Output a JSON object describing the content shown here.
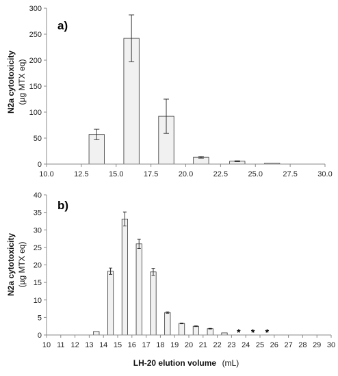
{
  "chart_data": [
    {
      "type": "bar",
      "panel_label": "a)",
      "ylabel_main": "N2a cytotoxicity",
      "ylabel_unit": "(µg MTX eq)",
      "xlim": [
        10.0,
        30.0
      ],
      "xticks": [
        "10.0",
        "12.5",
        "15.0",
        "17.5",
        "20.0",
        "22.5",
        "25.0",
        "27.5",
        "30.0"
      ],
      "xtick_values": [
        10.0,
        12.5,
        15.0,
        17.5,
        20.0,
        22.5,
        25.0,
        27.5,
        30.0
      ],
      "ylim": [
        0,
        300
      ],
      "yticks": [
        "0",
        "50",
        "100",
        "150",
        "200",
        "250",
        "300"
      ],
      "ytick_values": [
        0,
        50,
        100,
        150,
        200,
        250,
        300
      ],
      "bar_width": 1.1,
      "bars": [
        {
          "x": 13.6,
          "value": 57,
          "err": 10
        },
        {
          "x": 16.1,
          "value": 242,
          "err": 45
        },
        {
          "x": 18.6,
          "value": 92,
          "err": 33
        },
        {
          "x": 21.1,
          "value": 13,
          "err": 1.5
        },
        {
          "x": 23.7,
          "value": 5.5,
          "err": 0.8
        },
        {
          "x": 26.2,
          "value": 1.5,
          "err": 0
        }
      ],
      "bar_fill": "#f1f1f1",
      "bar_stroke": "#333333"
    },
    {
      "type": "bar",
      "panel_label": "b)",
      "ylabel_main": "N2a cytotoxicity",
      "ylabel_unit": "(µg MTX eq)",
      "xlabel_main": "LH-20 elution volume",
      "xlabel_unit": "(mL)",
      "xlim": [
        10,
        30
      ],
      "xticks": [
        "10",
        "11",
        "12",
        "13",
        "14",
        "15",
        "16",
        "17",
        "18",
        "19",
        "20",
        "21",
        "22",
        "23",
        "24",
        "25",
        "26",
        "27",
        "28",
        "29",
        "30"
      ],
      "xtick_values": [
        10,
        11,
        12,
        13,
        14,
        15,
        16,
        17,
        18,
        19,
        20,
        21,
        22,
        23,
        24,
        25,
        26,
        27,
        28,
        29,
        30
      ],
      "ylim": [
        0,
        40
      ],
      "yticks": [
        "0",
        "5",
        "10",
        "15",
        "20",
        "25",
        "30",
        "35",
        "40"
      ],
      "ytick_values": [
        0,
        5,
        10,
        15,
        20,
        25,
        30,
        35,
        40
      ],
      "bar_width": 0.4,
      "bars": [
        {
          "x": 13.5,
          "value": 1.0,
          "err": 0
        },
        {
          "x": 14.5,
          "value": 18.2,
          "err": 0.9
        },
        {
          "x": 15.5,
          "value": 33.1,
          "err": 2.0
        },
        {
          "x": 16.5,
          "value": 26.0,
          "err": 1.3
        },
        {
          "x": 17.5,
          "value": 18.0,
          "err": 1.0
        },
        {
          "x": 18.5,
          "value": 6.4,
          "err": 0.2
        },
        {
          "x": 19.5,
          "value": 3.3,
          "err": 0.1
        },
        {
          "x": 20.5,
          "value": 2.5,
          "err": 0.1
        },
        {
          "x": 21.5,
          "value": 1.8,
          "err": 0.1
        },
        {
          "x": 22.5,
          "value": 0.6,
          "err": 0
        }
      ],
      "annotations": [
        {
          "x": 23.5,
          "text": "*"
        },
        {
          "x": 24.5,
          "text": "*"
        },
        {
          "x": 25.5,
          "text": "*"
        }
      ],
      "bar_fill": "#f1f1f1",
      "bar_stroke": "#333333"
    }
  ]
}
